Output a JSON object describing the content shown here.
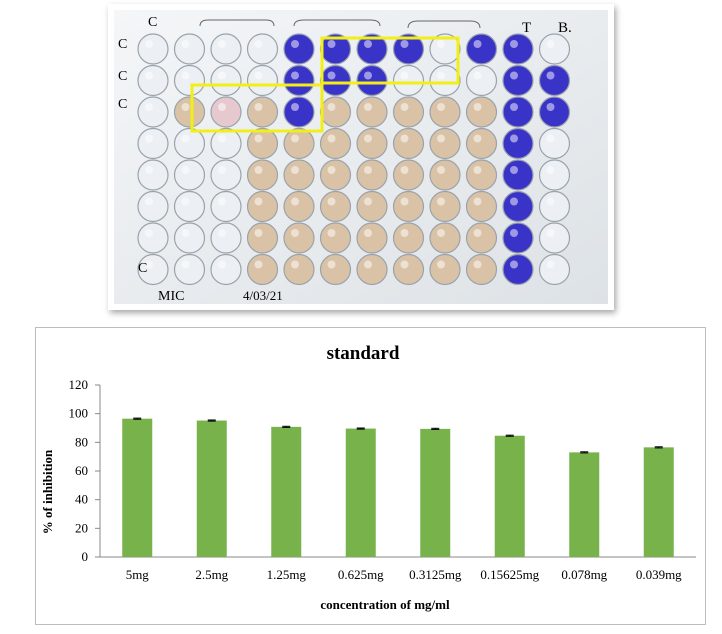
{
  "photo": {
    "annotations": [
      "C",
      "T",
      "B.",
      "MIC",
      "4/03/21"
    ],
    "well_colors": {
      "purple": "#3a33c8",
      "tan": "#d9c2a6",
      "pink": "#e6c9cf",
      "clear": "#eceff3"
    },
    "highlight_color": "#f2ef16"
  },
  "chart_data": {
    "type": "bar",
    "title": "standard",
    "xlabel": "concentration of mg/ml",
    "ylabel": "% of inhibition",
    "categories": [
      "5mg",
      "2.5mg",
      "1.25mg",
      "0.625mg",
      "0.3125mg",
      "0.15625mg",
      "0.078mg",
      "0.039mg"
    ],
    "values": [
      96.5,
      95.2,
      90.8,
      89.6,
      89.4,
      84.6,
      73.0,
      76.5
    ],
    "errors": [
      0.4,
      0.4,
      0.4,
      0.4,
      0.4,
      0.4,
      0.4,
      0.4
    ],
    "ylim": [
      0,
      120
    ],
    "yticks": [
      0,
      20,
      40,
      60,
      80,
      100,
      120
    ],
    "bar_color": "#77b24b",
    "grid": false,
    "legend": "none"
  }
}
